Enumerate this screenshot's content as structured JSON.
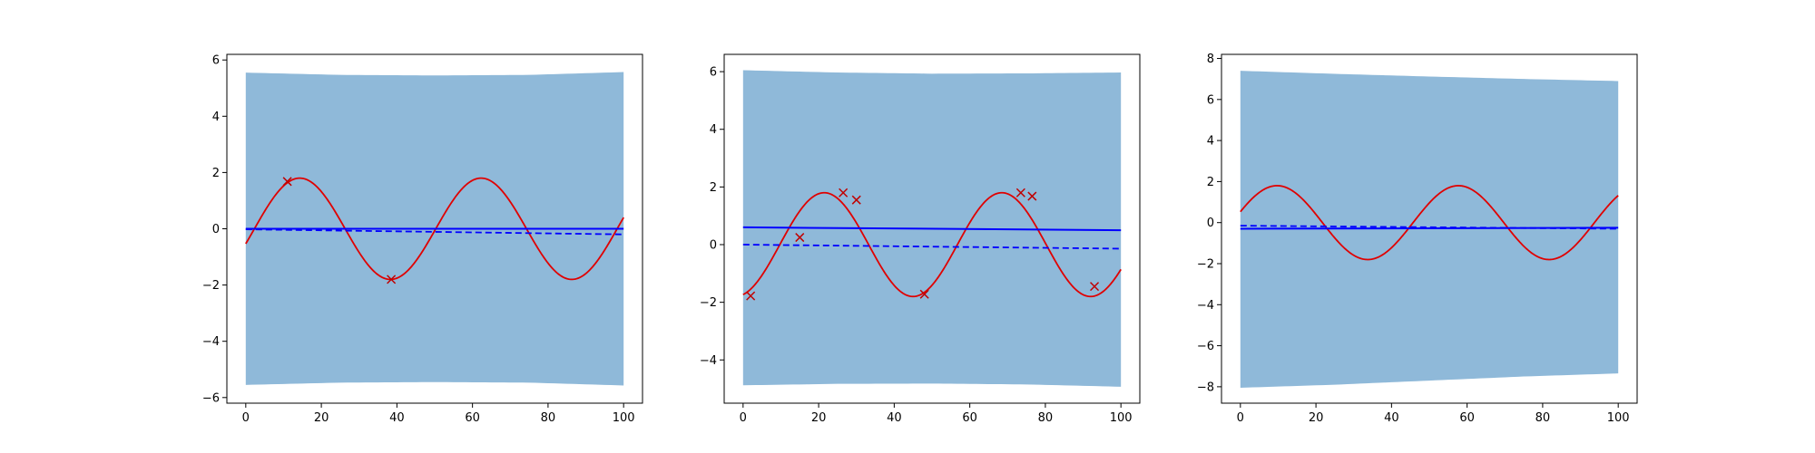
{
  "figure": {
    "background": "#ffffff",
    "band_color": "#8fb9d9",
    "mean_color": "#0000ff",
    "truth_color": "#e00000",
    "marker_color": "#c00000",
    "axis_color": "#000000"
  },
  "chart_data": [
    {
      "type": "line",
      "title": "",
      "xlabel": "",
      "ylabel": "",
      "xlim": [
        -5,
        105
      ],
      "ylim": [
        -6.2,
        6.2
      ],
      "xticks": [
        0,
        20,
        40,
        60,
        80,
        100
      ],
      "yticks": [
        -6,
        -4,
        -2,
        0,
        2,
        4,
        6
      ],
      "grid": false,
      "legend": "none",
      "band": {
        "x": [
          0,
          25,
          50,
          75,
          100
        ],
        "upper": [
          5.55,
          5.47,
          5.45,
          5.47,
          5.57
        ],
        "lower": [
          -5.55,
          -5.47,
          -5.45,
          -5.47,
          -5.57
        ]
      },
      "mean_line": {
        "style": "solid",
        "x": [
          0,
          100
        ],
        "y": [
          0.0,
          0.0
        ]
      },
      "mean_dashed": {
        "style": "dashed",
        "x": [
          0,
          100
        ],
        "y": [
          -0.02,
          -0.2
        ]
      },
      "truth_curve": {
        "style": "solid",
        "amplitude": 1.8,
        "period": 48,
        "phase": -0.3
      },
      "samples": {
        "marker": "x",
        "x": [
          11,
          38.5
        ],
        "y": [
          1.68,
          -1.8
        ]
      }
    },
    {
      "type": "line",
      "title": "",
      "xlabel": "",
      "ylabel": "",
      "xlim": [
        -5,
        105
      ],
      "ylim": [
        -5.5,
        6.6
      ],
      "xticks": [
        0,
        20,
        40,
        60,
        80,
        100
      ],
      "yticks": [
        -4,
        -2,
        0,
        2,
        4,
        6
      ],
      "grid": false,
      "legend": "none",
      "band": {
        "x": [
          0,
          25,
          50,
          75,
          100
        ],
        "upper": [
          6.05,
          5.97,
          5.93,
          5.94,
          5.97
        ],
        "lower": [
          -4.88,
          -4.83,
          -4.82,
          -4.85,
          -4.93
        ]
      },
      "mean_line": {
        "style": "solid",
        "x": [
          0,
          100
        ],
        "y": [
          0.6,
          0.5
        ]
      },
      "mean_dashed": {
        "style": "dashed",
        "x": [
          0,
          100
        ],
        "y": [
          0.0,
          -0.14
        ]
      },
      "truth_curve": {
        "style": "solid",
        "amplitude": 1.8,
        "period": 47,
        "phase": -1.3
      },
      "samples": {
        "marker": "x",
        "x": [
          2,
          15,
          26.5,
          30,
          48,
          73.5,
          76.5,
          93
        ],
        "y": [
          -1.78,
          0.25,
          1.8,
          1.55,
          -1.72,
          1.8,
          1.68,
          -1.45
        ]
      }
    },
    {
      "type": "line",
      "title": "",
      "xlabel": "",
      "ylabel": "",
      "xlim": [
        -5,
        105
      ],
      "ylim": [
        -8.8,
        8.2
      ],
      "xticks": [
        0,
        20,
        40,
        60,
        80,
        100
      ],
      "yticks": [
        -8,
        -6,
        -4,
        -2,
        0,
        2,
        4,
        6,
        8
      ],
      "grid": false,
      "legend": "none",
      "band": {
        "x": [
          0,
          25,
          50,
          75,
          100
        ],
        "upper": [
          7.4,
          7.25,
          7.12,
          7.0,
          6.9
        ],
        "lower": [
          -8.05,
          -7.9,
          -7.7,
          -7.5,
          -7.35
        ]
      },
      "mean_line": {
        "style": "solid",
        "x": [
          0,
          100
        ],
        "y": [
          -0.3,
          -0.25
        ]
      },
      "mean_dashed": {
        "style": "dashed",
        "x": [
          0,
          100
        ],
        "y": [
          -0.15,
          -0.3
        ]
      },
      "truth_curve": {
        "style": "solid",
        "amplitude": 1.8,
        "period": 48,
        "phase": 0.3
      },
      "samples": {
        "marker": "x",
        "x": [],
        "y": []
      }
    }
  ]
}
